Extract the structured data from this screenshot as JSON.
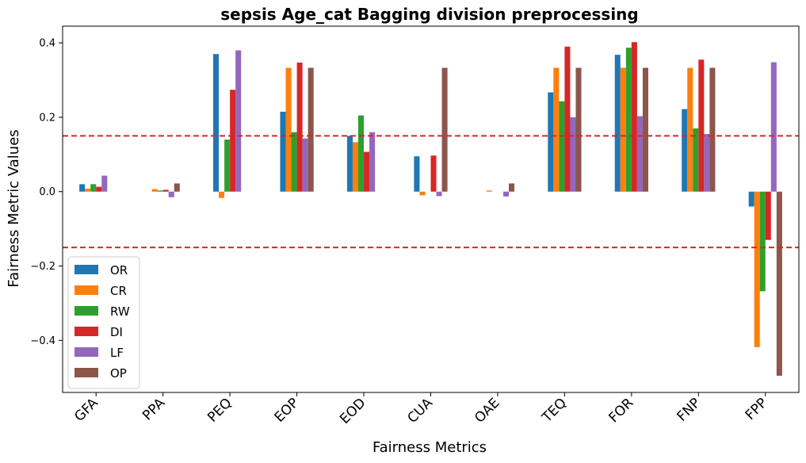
{
  "chart_data": {
    "type": "bar",
    "title": "sepsis Age_cat Bagging division preprocessing",
    "xlabel": "Fairness Metrics",
    "ylabel": "Fairness Metric Values",
    "ylim": [
      -0.54,
      0.445
    ],
    "yticks": [
      -0.4,
      -0.2,
      0.0,
      0.2,
      0.4
    ],
    "ytick_labels": [
      "−0.4",
      "−0.2",
      "0.0",
      "0.2",
      "0.4"
    ],
    "reference_lines": [
      0.15,
      -0.15
    ],
    "reference_line_color": "#d62728",
    "legend_position": "lower-left",
    "grid": false,
    "categories": [
      "GFA",
      "PPA",
      "PEQ",
      "EOP",
      "EOD",
      "CUA",
      "OAE",
      "TEQ",
      "FOR",
      "FNP",
      "FPP"
    ],
    "series": [
      {
        "name": "OR",
        "color": "#1f77b4",
        "values": [
          0.02,
          0.0,
          0.37,
          0.215,
          0.15,
          0.095,
          0.0,
          0.267,
          0.368,
          0.222,
          -0.04
        ]
      },
      {
        "name": "CR",
        "color": "#ff7f0e",
        "values": [
          0.008,
          0.007,
          -0.017,
          0.333,
          0.133,
          -0.01,
          0.003,
          0.333,
          0.333,
          0.333,
          -0.418
        ]
      },
      {
        "name": "RW",
        "color": "#2ca02c",
        "values": [
          0.02,
          0.003,
          0.14,
          0.16,
          0.205,
          0.0,
          0.0,
          0.243,
          0.387,
          0.17,
          -0.268
        ]
      },
      {
        "name": "DI",
        "color": "#d62728",
        "values": [
          0.013,
          0.005,
          0.274,
          0.347,
          0.107,
          0.097,
          0.0,
          0.39,
          0.402,
          0.355,
          -0.13
        ]
      },
      {
        "name": "LF",
        "color": "#9467bd",
        "values": [
          0.043,
          -0.015,
          0.38,
          0.143,
          0.16,
          -0.012,
          -0.013,
          0.2,
          0.203,
          0.155,
          0.348
        ]
      },
      {
        "name": "OP",
        "color": "#8c564b",
        "values": [
          0.0,
          0.022,
          0.0,
          0.333,
          0.0,
          0.333,
          0.022,
          0.333,
          0.333,
          0.333,
          -0.495
        ]
      }
    ]
  }
}
